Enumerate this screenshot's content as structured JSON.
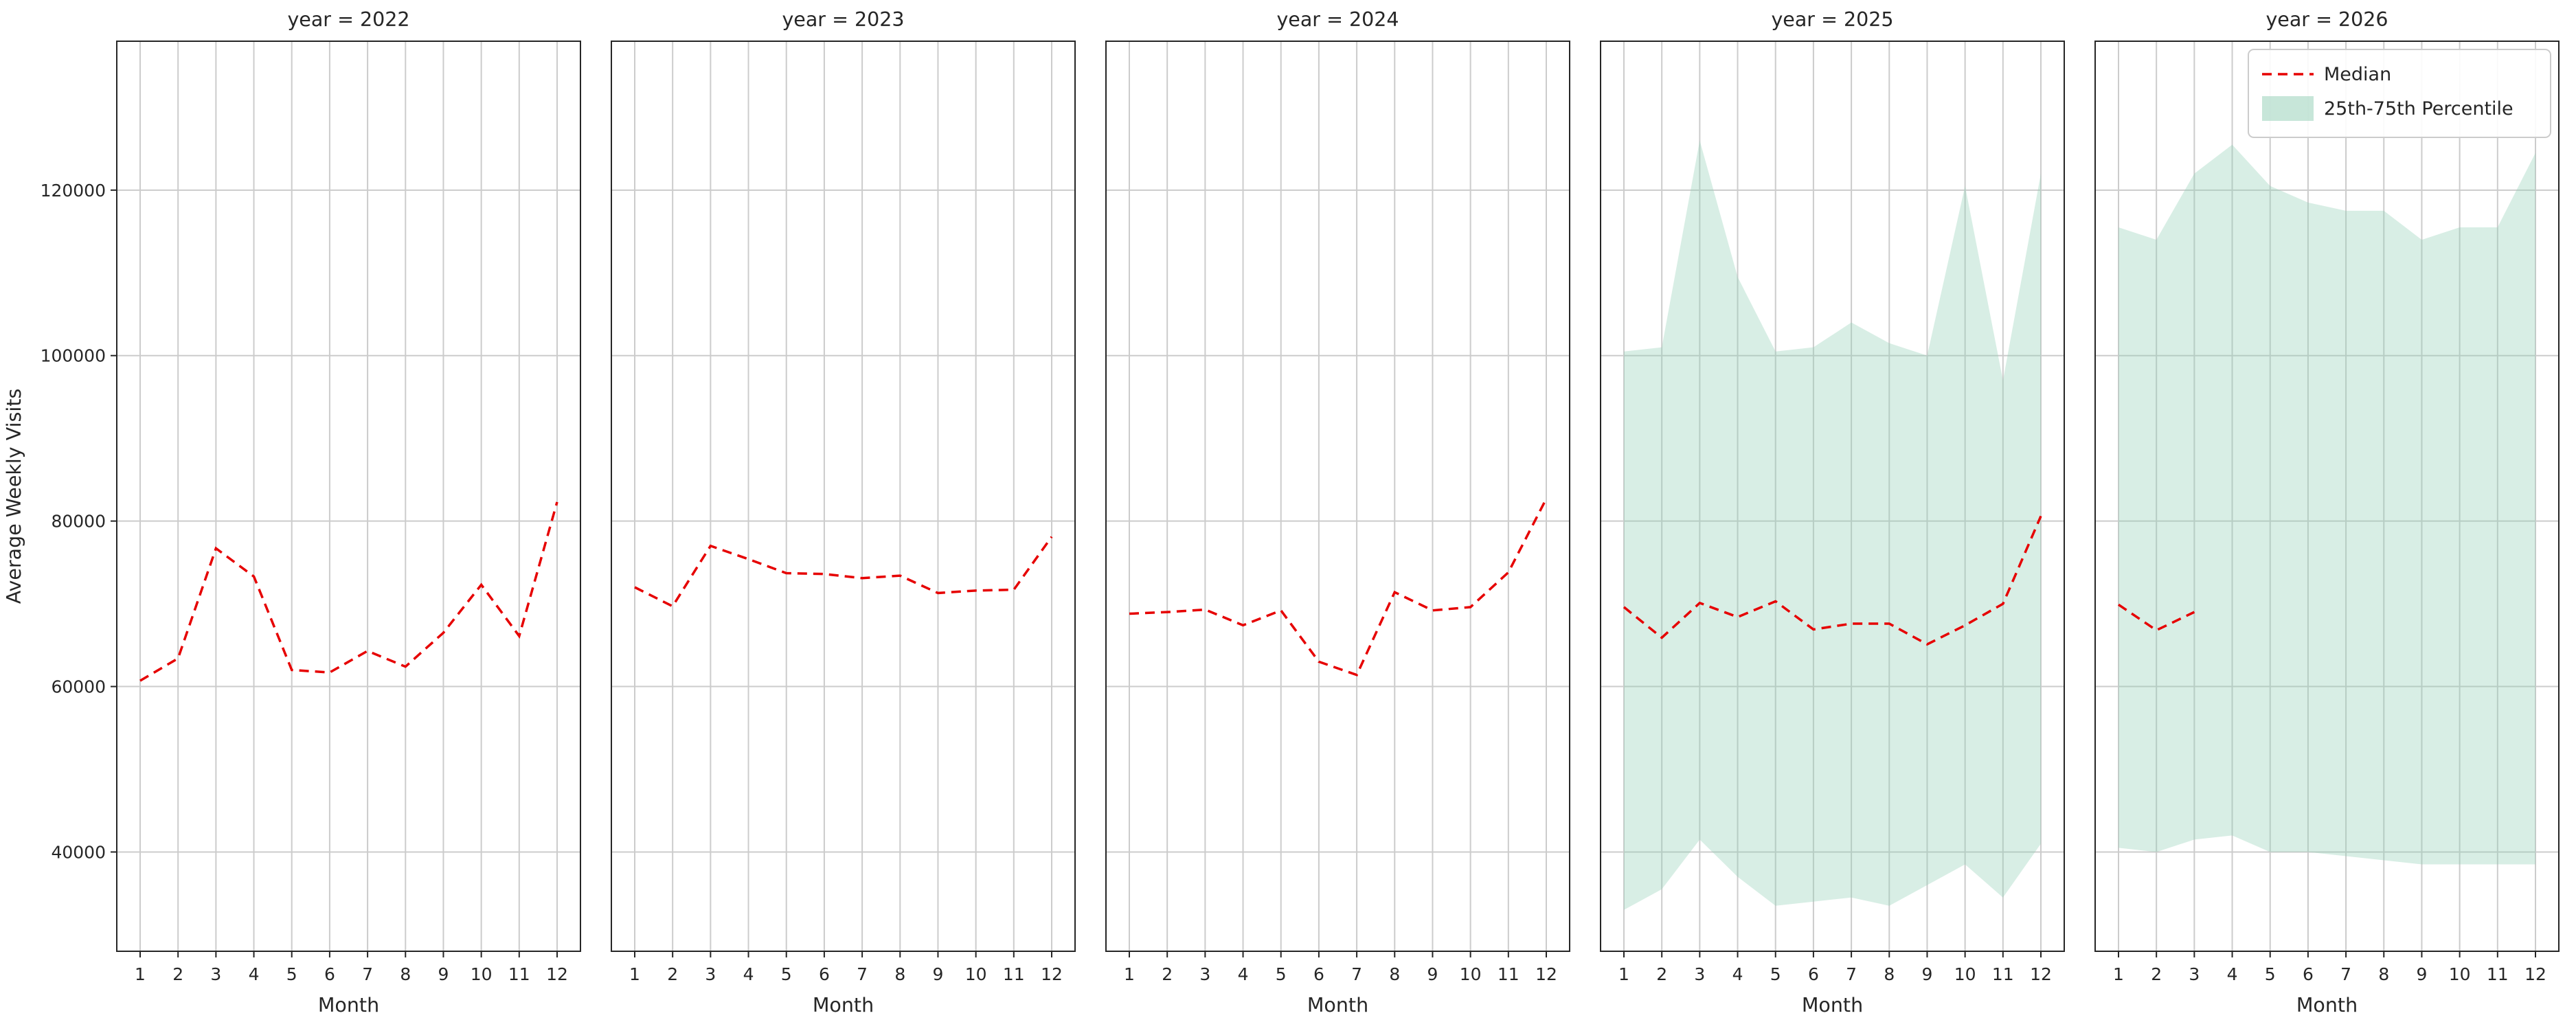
{
  "figure": {
    "background": "#ffffff",
    "title": "",
    "ylabel": "Average Weekly Visits",
    "xlabel": "Month"
  },
  "legend": {
    "entries": [
      {
        "label": "Median",
        "type": "dashed-line",
        "color": "#e60000"
      },
      {
        "label": "25th-75th Percentile",
        "type": "patch",
        "color": "#8fcdb4"
      }
    ],
    "position": "upper-right-last-facet"
  },
  "chart_data": {
    "type": "line",
    "facet_by": "year",
    "x": [
      1,
      2,
      3,
      4,
      5,
      6,
      7,
      8,
      9,
      10,
      11,
      12
    ],
    "xlabel": "Month",
    "ylabel": "Average Weekly Visits",
    "ylim": [
      28000,
      138000
    ],
    "yticks": [
      40000,
      60000,
      80000,
      100000,
      120000
    ],
    "ytick_labels": [
      "40000",
      "60000",
      "80000",
      "100000",
      "120000"
    ],
    "xtick_labels": [
      "1",
      "2",
      "3",
      "4",
      "5",
      "6",
      "7",
      "8",
      "9",
      "10",
      "11",
      "12"
    ],
    "grid": true,
    "legend": [
      "Median",
      "25th-75th Percentile"
    ],
    "styles": {
      "median_color": "#e60000",
      "median_dashed": true,
      "band_fill": "#8fcdb4",
      "band_opacity": 0.35,
      "grid_color": "#cccccc",
      "spine_color": "#262626"
    },
    "facets": [
      {
        "title": "year = 2022",
        "median": [
          60700,
          63400,
          76700,
          73300,
          62000,
          61700,
          64300,
          62400,
          66500,
          72300,
          66100,
          82300
        ],
        "p25": null,
        "p75": null
      },
      {
        "title": "year = 2023",
        "median": [
          72000,
          69700,
          77000,
          75400,
          73700,
          73600,
          73100,
          73400,
          71300,
          71600,
          71700,
          78100
        ],
        "p25": null,
        "p75": null
      },
      {
        "title": "year = 2024",
        "median": [
          68800,
          69000,
          69300,
          67400,
          69200,
          63000,
          61400,
          71400,
          69200,
          69600,
          73800,
          82700
        ],
        "p25": null,
        "p75": null
      },
      {
        "title": "year = 2025",
        "median": [
          69600,
          65900,
          70100,
          68400,
          70300,
          66900,
          67600,
          67600,
          65100,
          67400,
          70000,
          80600
        ],
        "p25": [
          33000,
          35500,
          41500,
          37000,
          33500,
          34000,
          34500,
          33500,
          36000,
          38500,
          34500,
          41000
        ],
        "p75": [
          100500,
          101000,
          126000,
          109500,
          100500,
          101000,
          104000,
          101500,
          100000,
          120500,
          97000,
          122000
        ]
      },
      {
        "title": "year = 2026",
        "median": [
          69900,
          66800,
          69000,
          null,
          null,
          null,
          null,
          null,
          null,
          null,
          null,
          null
        ],
        "p25": [
          40500,
          40000,
          41500,
          42000,
          40000,
          40000,
          39500,
          39000,
          38500,
          38500,
          38500,
          38500
        ],
        "p75": [
          115500,
          114000,
          122000,
          125500,
          120500,
          118500,
          117500,
          117500,
          114000,
          115500,
          115500,
          124500
        ]
      }
    ]
  }
}
